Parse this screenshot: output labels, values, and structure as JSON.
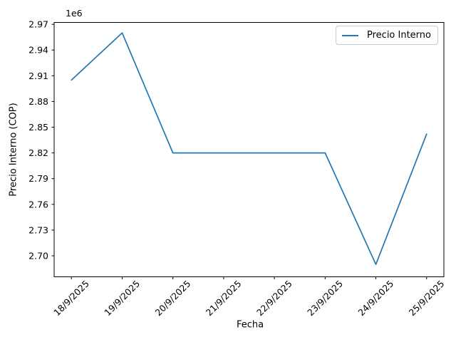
{
  "chart_data": {
    "type": "line",
    "title": "",
    "xlabel": "Fecha",
    "ylabel": "Precio Interno (COP)",
    "offset_label": "1e6",
    "categories": [
      "18/9/2025",
      "19/9/2025",
      "20/9/2025",
      "21/9/2025",
      "22/9/2025",
      "23/9/2025",
      "24/9/2025",
      "25/9/2025"
    ],
    "series": [
      {
        "name": "Precio Interno",
        "color": "#1f77b4",
        "values": [
          2905000,
          2960000,
          2820000,
          2820000,
          2820000,
          2820000,
          2690000,
          2842000
        ]
      }
    ],
    "yticks": [
      2700000,
      2730000,
      2760000,
      2790000,
      2820000,
      2850000,
      2880000,
      2910000,
      2940000,
      2970000
    ],
    "ytick_labels": [
      "2.70",
      "2.73",
      "2.76",
      "2.79",
      "2.82",
      "2.85",
      "2.88",
      "2.91",
      "2.94",
      "2.97"
    ],
    "ylim": [
      2675500,
      2972200
    ],
    "x_tick_rotation": 45,
    "grid": false,
    "legend_position": "upper right"
  },
  "colors": {
    "line": "#1f77b4",
    "axis": "#000000",
    "text": "#000000",
    "legend_border": "#cccccc",
    "background": "#ffffff"
  }
}
